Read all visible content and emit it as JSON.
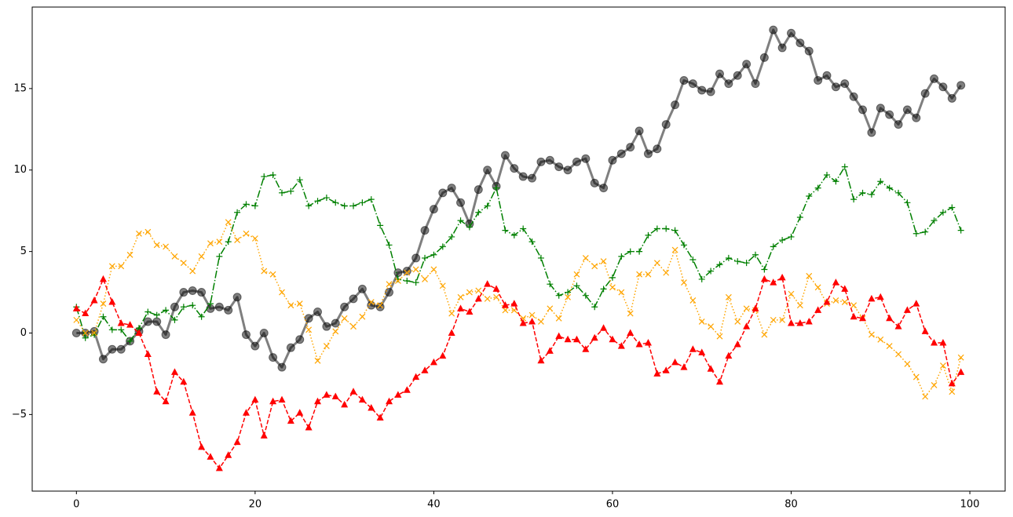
{
  "chart_data": {
    "type": "line",
    "x": [
      0,
      1,
      2,
      3,
      4,
      5,
      6,
      7,
      8,
      9,
      10,
      11,
      12,
      13,
      14,
      15,
      16,
      17,
      18,
      19,
      20,
      21,
      22,
      23,
      24,
      25,
      26,
      27,
      28,
      29,
      30,
      31,
      32,
      33,
      34,
      35,
      36,
      37,
      38,
      39,
      40,
      41,
      42,
      43,
      44,
      45,
      46,
      47,
      48,
      49,
      50,
      51,
      52,
      53,
      54,
      55,
      56,
      57,
      58,
      59,
      60,
      61,
      62,
      63,
      64,
      65,
      66,
      67,
      68,
      69,
      70,
      71,
      72,
      73,
      74,
      75,
      76,
      77,
      78,
      79,
      80,
      81,
      82,
      83,
      84,
      85,
      86,
      87,
      88,
      89,
      90,
      91,
      92,
      93,
      94,
      95,
      96,
      97,
      98,
      99
    ],
    "series": [
      {
        "color": "#000000",
        "alpha": 0.5,
        "linewidth": 3,
        "linestyle": "solid",
        "marker": "circle",
        "values": [
          0.0,
          0.0,
          0.1,
          -1.6,
          -1.0,
          -1.0,
          -0.5,
          0.1,
          0.7,
          0.7,
          -0.1,
          1.6,
          2.5,
          2.6,
          2.5,
          1.5,
          1.6,
          1.4,
          2.2,
          -0.1,
          -0.8,
          0.0,
          -1.5,
          -2.1,
          -0.9,
          -0.4,
          0.9,
          1.3,
          0.4,
          0.6,
          1.6,
          2.1,
          2.7,
          1.7,
          1.6,
          2.5,
          3.7,
          3.8,
          4.6,
          6.3,
          7.6,
          8.6,
          8.9,
          8.0,
          6.7,
          8.8,
          10.0,
          9.0,
          10.9,
          10.1,
          9.6,
          9.5,
          10.5,
          10.6,
          10.2,
          10.0,
          10.5,
          10.7,
          9.2,
          8.9,
          10.6,
          11.0,
          11.4,
          12.4,
          11.0,
          11.3,
          12.8,
          14.0,
          15.5,
          15.3,
          14.9,
          14.8,
          15.9,
          15.3,
          15.8,
          16.5,
          15.3,
          16.9,
          18.6,
          17.5,
          18.4,
          17.8,
          17.3,
          15.5,
          15.8,
          15.1,
          15.3,
          14.5,
          13.7,
          12.3,
          13.8,
          13.4,
          12.8,
          13.7,
          13.2,
          14.7,
          15.6,
          15.1,
          14.4,
          15.2
        ]
      },
      {
        "color": "#008000",
        "alpha": 1,
        "linewidth": 1.5,
        "linestyle": "dashdot",
        "marker": "plus",
        "values": [
          1.6,
          -0.3,
          -0.1,
          1.0,
          0.2,
          0.2,
          -0.5,
          0.3,
          1.3,
          1.1,
          1.4,
          0.8,
          1.6,
          1.7,
          1.0,
          1.8,
          4.7,
          5.6,
          7.4,
          7.9,
          7.8,
          9.6,
          9.7,
          8.6,
          8.7,
          9.4,
          7.8,
          8.1,
          8.3,
          8.0,
          7.8,
          7.8,
          8.0,
          8.2,
          6.6,
          5.4,
          3.3,
          3.2,
          3.1,
          4.6,
          4.8,
          5.3,
          5.9,
          6.9,
          6.5,
          7.4,
          7.8,
          8.9,
          6.3,
          6.0,
          6.4,
          5.6,
          4.6,
          3.0,
          2.3,
          2.5,
          2.9,
          2.3,
          1.6,
          2.7,
          3.4,
          4.7,
          5.0,
          5.0,
          6.0,
          6.4,
          6.4,
          6.3,
          5.4,
          4.5,
          3.3,
          3.8,
          4.2,
          4.6,
          4.4,
          4.3,
          4.8,
          3.9,
          5.3,
          5.7,
          5.9,
          7.1,
          8.4,
          8.9,
          9.7,
          9.3,
          10.2,
          8.2,
          8.6,
          8.5,
          9.3,
          8.9,
          8.6,
          8.0,
          6.1,
          6.2,
          6.9,
          7.4,
          7.7,
          6.3
        ]
      },
      {
        "color": "#ffa500",
        "alpha": 1,
        "linewidth": 1.5,
        "linestyle": "dotted",
        "marker": "x",
        "values": [
          0.8,
          0.0,
          0.0,
          1.8,
          4.1,
          4.1,
          4.8,
          6.1,
          6.2,
          5.4,
          5.3,
          4.7,
          4.3,
          3.8,
          4.7,
          5.5,
          5.6,
          6.8,
          5.7,
          6.1,
          5.8,
          3.8,
          3.6,
          2.5,
          1.7,
          1.8,
          0.2,
          -1.7,
          -0.8,
          0.1,
          0.9,
          0.4,
          1.0,
          1.9,
          1.7,
          3.0,
          3.2,
          3.7,
          3.9,
          3.3,
          3.9,
          2.9,
          1.2,
          2.2,
          2.5,
          2.6,
          2.1,
          2.2,
          1.4,
          1.4,
          0.9,
          1.1,
          0.7,
          1.5,
          0.9,
          2.2,
          3.6,
          4.6,
          4.1,
          4.4,
          2.8,
          2.5,
          1.2,
          3.6,
          3.6,
          4.3,
          3.7,
          5.1,
          3.1,
          2.0,
          0.7,
          0.4,
          -0.2,
          2.2,
          0.7,
          1.5,
          1.4,
          -0.1,
          0.8,
          0.8,
          2.4,
          1.7,
          3.5,
          2.8,
          1.8,
          2.0,
          1.9,
          1.7,
          0.9,
          -0.1,
          -0.4,
          -0.8,
          -1.3,
          -1.9,
          -2.7,
          -3.9,
          -3.2,
          -2.0,
          -3.6,
          -1.5
        ]
      },
      {
        "color": "#ff0000",
        "alpha": 1,
        "linewidth": 1.5,
        "linestyle": "dashed",
        "marker": "triangle",
        "values": [
          1.5,
          1.2,
          2.0,
          3.3,
          1.9,
          0.6,
          0.5,
          0.0,
          -1.3,
          -3.6,
          -4.2,
          -2.4,
          -3.0,
          -4.9,
          -7.0,
          -7.6,
          -8.3,
          -7.5,
          -6.7,
          -4.9,
          -4.1,
          -6.3,
          -4.2,
          -4.1,
          -5.4,
          -4.9,
          -5.8,
          -4.2,
          -3.8,
          -3.9,
          -4.4,
          -3.6,
          -4.1,
          -4.6,
          -5.2,
          -4.2,
          -3.8,
          -3.5,
          -2.7,
          -2.3,
          -1.8,
          -1.4,
          0.0,
          1.5,
          1.3,
          2.1,
          3.0,
          2.7,
          1.7,
          1.8,
          0.6,
          0.7,
          -1.7,
          -1.1,
          -0.2,
          -0.4,
          -0.4,
          -1.0,
          -0.3,
          0.3,
          -0.4,
          -0.8,
          0.0,
          -0.7,
          -0.6,
          -2.5,
          -2.3,
          -1.8,
          -2.1,
          -1.0,
          -1.2,
          -2.2,
          -3.0,
          -1.4,
          -0.7,
          0.4,
          1.5,
          3.3,
          3.1,
          3.4,
          0.6,
          0.6,
          0.7,
          1.4,
          1.9,
          3.1,
          2.7,
          1.0,
          0.9,
          2.1,
          2.2,
          0.9,
          0.4,
          1.4,
          1.8,
          0.1,
          -0.6,
          -0.6,
          -3.1,
          -2.4
        ]
      }
    ],
    "xlim": [
      -4.95,
      103.95
    ],
    "xticks": [
      0,
      20,
      40,
      60,
      80,
      100
    ],
    "ylim": [
      -9.7,
      20.0
    ],
    "yticks": [
      {
        "value": -5,
        "label": "−5"
      },
      0,
      5,
      10,
      15
    ],
    "grid": false
  }
}
